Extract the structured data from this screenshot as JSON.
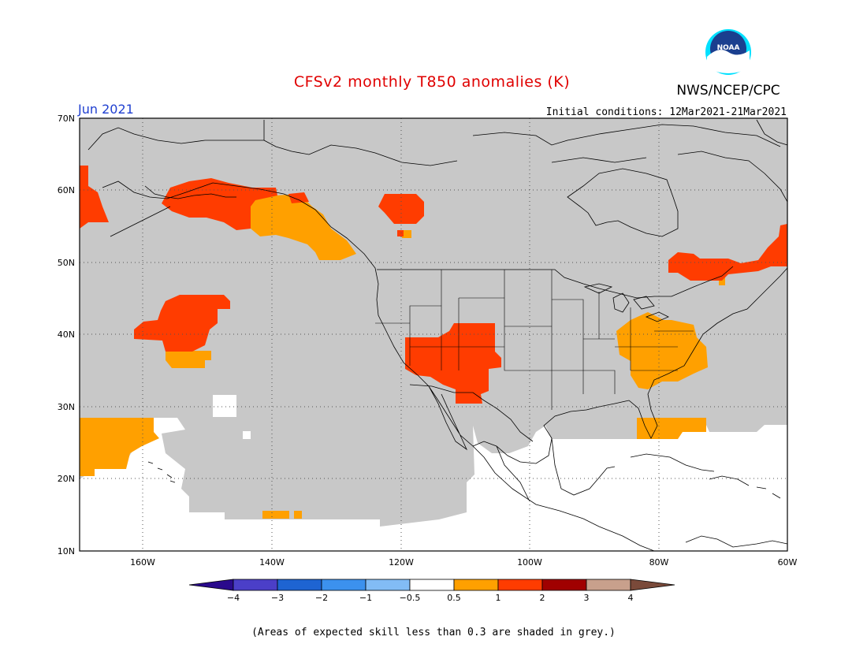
{
  "title": "CFSv2 monthly T850 anomalies (K)",
  "month_label": "Jun 2021",
  "agency": "NWS/NCEP/CPC",
  "logo_text": "NOAA",
  "initial_conditions": "Initial conditions: 12Mar2021-21Mar2021",
  "footnote": "(Areas of expected skill less than 0.3 are shaded in grey.)",
  "colors": {
    "low_skill_grey": "#c8c8c8",
    "no_data_white": "#ffffff",
    "orange": "#ffa000",
    "red": "#ff3c00",
    "dark_red": "#a00000",
    "tan": "#c8a08c",
    "brown": "#7a4a3a",
    "blue_neg4": "#2a0a8c",
    "blue_neg3": "#4b3fc8",
    "blue_neg2": "#1e64d2",
    "blue_neg1": "#3c91ee",
    "blue_neg05": "#82bcf5",
    "noaa_blue": "#1a3f8f",
    "noaa_cyan": "#00e0ff"
  },
  "map": {
    "lon_range": [
      -170,
      -60
    ],
    "lat_range": [
      10,
      70
    ],
    "lat_ticks": [
      "70N",
      "60N",
      "50N",
      "40N",
      "30N",
      "20N",
      "10N"
    ],
    "lon_ticks": [
      "160W",
      "140W",
      "120W",
      "100W",
      "80W",
      "60W"
    ],
    "anomaly_regions": [
      {
        "name": "bering-red",
        "category": "1 to 2 K",
        "color": "red"
      },
      {
        "name": "alaska-gulf-red",
        "category": "1 to 2 K",
        "color": "red"
      },
      {
        "name": "bc-coast-orange",
        "category": "0.5 to 1 K",
        "color": "orange"
      },
      {
        "name": "hudson-bay-red",
        "category": "1 to 2 K",
        "color": "red"
      },
      {
        "name": "pacific-high-red",
        "category": "1 to 2 K",
        "color": "red"
      },
      {
        "name": "pacific-high-orange",
        "category": "0.5 to 1 K",
        "color": "orange"
      },
      {
        "name": "southwest-us-red",
        "category": "1 to 2 K",
        "color": "red"
      },
      {
        "name": "mid-atlantic-orange",
        "category": "0.5 to 1 K",
        "color": "orange"
      },
      {
        "name": "quebec-maritimes-red",
        "category": "1 to 2 K",
        "color": "red"
      },
      {
        "name": "hawaii-orange",
        "category": "0.5 to 1 K",
        "color": "orange"
      },
      {
        "name": "florida-orange",
        "category": "0.5 to 1 K",
        "color": "orange"
      }
    ]
  },
  "colorbar": {
    "labels": [
      "-4",
      "-3",
      "-2",
      "-1",
      "-0.5",
      "0.5",
      "1",
      "2",
      "3",
      "4"
    ],
    "segments": [
      {
        "range": "< -4",
        "color": "#2a0a8c"
      },
      {
        "range": "-4 to -3",
        "color": "#4b3fc8"
      },
      {
        "range": "-3 to -2",
        "color": "#1e64d2"
      },
      {
        "range": "-2 to -1",
        "color": "#3c91ee"
      },
      {
        "range": "-1 to -0.5",
        "color": "#82bcf5"
      },
      {
        "range": "-0.5 to 0.5",
        "color": "#ffffff"
      },
      {
        "range": "0.5 to 1",
        "color": "#ffa000"
      },
      {
        "range": "1 to 2",
        "color": "#ff3c00"
      },
      {
        "range": "2 to 3",
        "color": "#a00000"
      },
      {
        "range": "3 to 4",
        "color": "#c8a08c"
      },
      {
        "range": "> 4",
        "color": "#7a4a3a"
      }
    ]
  }
}
